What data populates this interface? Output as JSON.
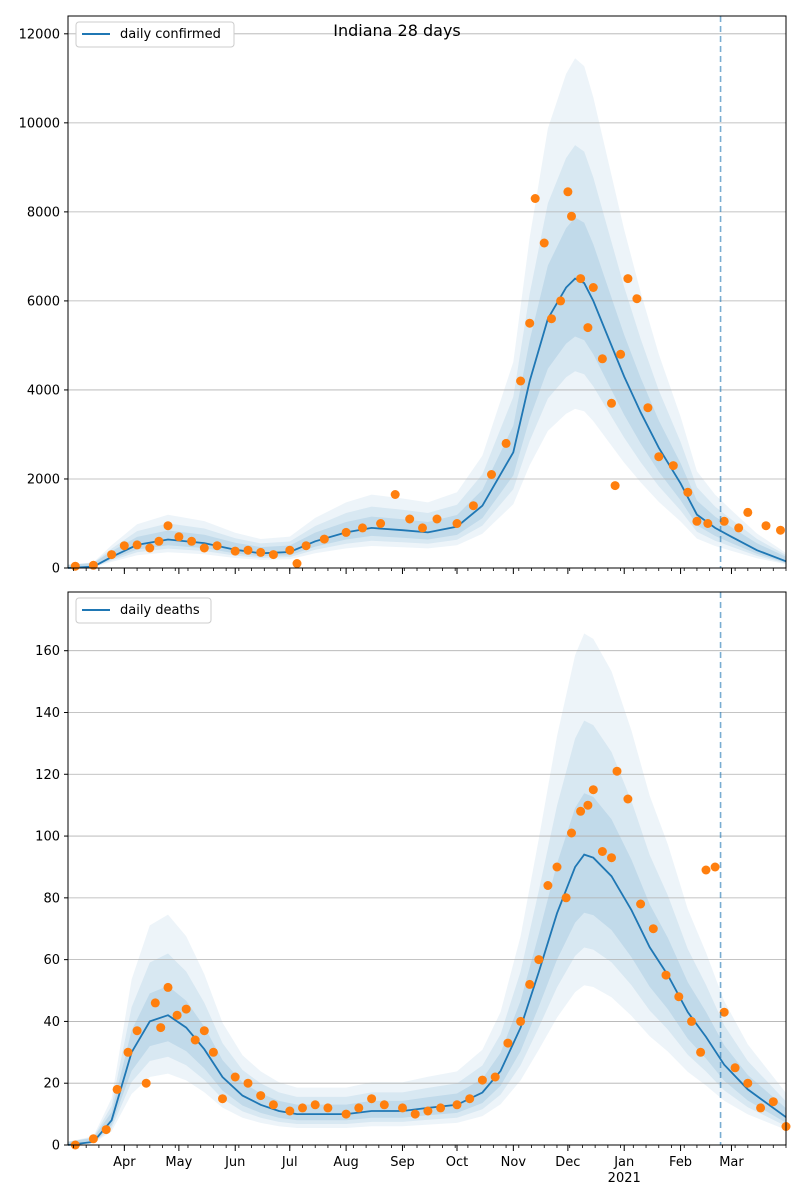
{
  "chart_data": [
    {
      "type": "line",
      "title": "Indiana 28 days",
      "xlabel": "",
      "ylabel": "",
      "ylim": [
        0,
        12400
      ],
      "yticks": [
        0,
        2000,
        4000,
        6000,
        8000,
        10000,
        12000
      ],
      "grid": "horizontal",
      "legend_placement": "top-left",
      "x_domain": [
        "2020-03-01",
        "2021-03-31"
      ],
      "forecast_start": "2021-02-23",
      "series": [
        {
          "name": "daily confirmed",
          "kind": "model line with uncertainty bands",
          "color": "#1f77b4",
          "x": [
            "2020-03-01",
            "2020-03-15",
            "2020-03-25",
            "2020-04-08",
            "2020-04-25",
            "2020-05-15",
            "2020-06-01",
            "2020-06-15",
            "2020-07-01",
            "2020-07-15",
            "2020-08-01",
            "2020-08-15",
            "2020-09-01",
            "2020-09-15",
            "2020-10-01",
            "2020-10-15",
            "2020-11-01",
            "2020-11-10",
            "2020-11-20",
            "2020-11-30",
            "2020-12-05",
            "2020-12-10",
            "2020-12-15",
            "2020-12-22",
            "2021-01-01",
            "2021-01-10",
            "2021-01-20",
            "2021-02-01",
            "2021-02-10",
            "2021-02-20",
            "2021-03-01",
            "2021-03-15",
            "2021-03-31"
          ],
          "values": [
            0,
            30,
            250,
            520,
            640,
            560,
            410,
            330,
            360,
            600,
            800,
            900,
            850,
            800,
            930,
            1400,
            2600,
            4200,
            5600,
            6300,
            6500,
            6400,
            6000,
            5300,
            4300,
            3500,
            2700,
            1900,
            1200,
            900,
            700,
            400,
            150
          ]
        },
        {
          "name": "",
          "kind": "daily observed points",
          "color": "#ff7f0e",
          "x": [
            "2020-03-05",
            "2020-03-15",
            "2020-03-25",
            "2020-04-01",
            "2020-04-08",
            "2020-04-15",
            "2020-04-20",
            "2020-04-25",
            "2020-05-01",
            "2020-05-08",
            "2020-05-15",
            "2020-05-22",
            "2020-06-01",
            "2020-06-08",
            "2020-06-15",
            "2020-06-22",
            "2020-07-01",
            "2020-07-05",
            "2020-07-10",
            "2020-07-20",
            "2020-08-01",
            "2020-08-10",
            "2020-08-20",
            "2020-08-28",
            "2020-09-05",
            "2020-09-12",
            "2020-09-20",
            "2020-10-01",
            "2020-10-10",
            "2020-10-20",
            "2020-10-28",
            "2020-11-05",
            "2020-11-10",
            "2020-11-13",
            "2020-11-18",
            "2020-11-22",
            "2020-11-27",
            "2020-12-01",
            "2020-12-03",
            "2020-12-08",
            "2020-12-12",
            "2020-12-15",
            "2020-12-20",
            "2020-12-25",
            "2020-12-27",
            "2020-12-30",
            "2021-01-03",
            "2021-01-08",
            "2021-01-14",
            "2021-01-20",
            "2021-01-28",
            "2021-02-05",
            "2021-02-10",
            "2021-02-16",
            "2021-02-25",
            "2021-03-05",
            "2021-03-10",
            "2021-03-20",
            "2021-03-28"
          ],
          "values": [
            40,
            60,
            300,
            500,
            520,
            450,
            600,
            950,
            700,
            600,
            450,
            500,
            380,
            400,
            350,
            300,
            400,
            100,
            500,
            650,
            800,
            900,
            1000,
            1650,
            1100,
            900,
            1100,
            1000,
            1400,
            2100,
            2800,
            4200,
            5500,
            8300,
            7300,
            5600,
            6000,
            8450,
            7900,
            6500,
            5400,
            6300,
            4700,
            3700,
            1850,
            4800,
            6500,
            6050,
            3600,
            2500,
            2300,
            1700,
            1050,
            1000,
            1050,
            900,
            1250,
            950,
            850
          ]
        }
      ]
    },
    {
      "type": "line",
      "title": "",
      "xlabel": "",
      "ylabel": "",
      "ylim": [
        0,
        179
      ],
      "yticks": [
        0,
        20,
        40,
        60,
        80,
        100,
        120,
        140,
        160
      ],
      "grid": "horizontal",
      "legend_placement": "top-left",
      "x_domain": [
        "2020-03-01",
        "2021-03-31"
      ],
      "x_ticks": [
        "Apr",
        "May",
        "Jun",
        "Jul",
        "Aug",
        "Sep",
        "Oct",
        "Nov",
        "Dec",
        "Jan",
        "Feb",
        "Mar"
      ],
      "x_year_label": "2021",
      "forecast_start": "2021-02-23",
      "series": [
        {
          "name": "daily deaths",
          "kind": "model line with uncertainty bands",
          "color": "#1f77b4",
          "x": [
            "2020-03-01",
            "2020-03-15",
            "2020-03-25",
            "2020-04-05",
            "2020-04-15",
            "2020-04-25",
            "2020-05-05",
            "2020-05-15",
            "2020-05-25",
            "2020-06-05",
            "2020-06-15",
            "2020-06-25",
            "2020-07-05",
            "2020-07-15",
            "2020-08-01",
            "2020-08-15",
            "2020-09-01",
            "2020-09-15",
            "2020-10-01",
            "2020-10-15",
            "2020-10-25",
            "2020-11-05",
            "2020-11-15",
            "2020-11-25",
            "2020-12-05",
            "2020-12-10",
            "2020-12-15",
            "2020-12-25",
            "2021-01-05",
            "2021-01-15",
            "2021-01-25",
            "2021-02-05",
            "2021-02-15",
            "2021-02-25",
            "2021-03-10",
            "2021-03-31"
          ],
          "values": [
            0,
            1,
            8,
            30,
            40,
            42,
            38,
            31,
            22,
            16,
            13,
            11,
            10,
            10,
            10,
            11,
            11,
            12,
            13,
            17,
            24,
            38,
            56,
            75,
            90,
            94,
            93,
            87,
            76,
            64,
            55,
            43,
            35,
            26,
            18,
            9
          ]
        },
        {
          "name": "",
          "kind": "daily observed points",
          "color": "#ff7f0e",
          "x": [
            "2020-03-05",
            "2020-03-15",
            "2020-03-22",
            "2020-03-28",
            "2020-04-03",
            "2020-04-08",
            "2020-04-13",
            "2020-04-18",
            "2020-04-21",
            "2020-04-25",
            "2020-04-30",
            "2020-05-05",
            "2020-05-10",
            "2020-05-15",
            "2020-05-20",
            "2020-05-25",
            "2020-06-01",
            "2020-06-08",
            "2020-06-15",
            "2020-06-22",
            "2020-07-01",
            "2020-07-08",
            "2020-07-15",
            "2020-07-22",
            "2020-08-01",
            "2020-08-08",
            "2020-08-15",
            "2020-08-22",
            "2020-09-01",
            "2020-09-08",
            "2020-09-15",
            "2020-09-22",
            "2020-10-01",
            "2020-10-08",
            "2020-10-15",
            "2020-10-22",
            "2020-10-29",
            "2020-11-05",
            "2020-11-10",
            "2020-11-15",
            "2020-11-20",
            "2020-11-25",
            "2020-11-30",
            "2020-12-03",
            "2020-12-08",
            "2020-12-12",
            "2020-12-15",
            "2020-12-20",
            "2020-12-25",
            "2020-12-28",
            "2021-01-03",
            "2021-01-10",
            "2021-01-17",
            "2021-01-24",
            "2021-01-31",
            "2021-02-07",
            "2021-02-12",
            "2021-02-15",
            "2021-02-20",
            "2021-02-25",
            "2021-03-03",
            "2021-03-10",
            "2021-03-17",
            "2021-03-24",
            "2021-03-31"
          ],
          "values": [
            0,
            2,
            5,
            18,
            30,
            37,
            20,
            46,
            38,
            51,
            42,
            44,
            34,
            37,
            30,
            15,
            22,
            20,
            16,
            13,
            11,
            12,
            13,
            12,
            10,
            12,
            15,
            13,
            12,
            10,
            11,
            12,
            13,
            15,
            21,
            22,
            33,
            40,
            52,
            60,
            84,
            90,
            80,
            101,
            108,
            110,
            115,
            95,
            93,
            121,
            112,
            78,
            70,
            55,
            48,
            40,
            30,
            89,
            90,
            43,
            25,
            20,
            12,
            14,
            6
          ]
        }
      ]
    }
  ]
}
